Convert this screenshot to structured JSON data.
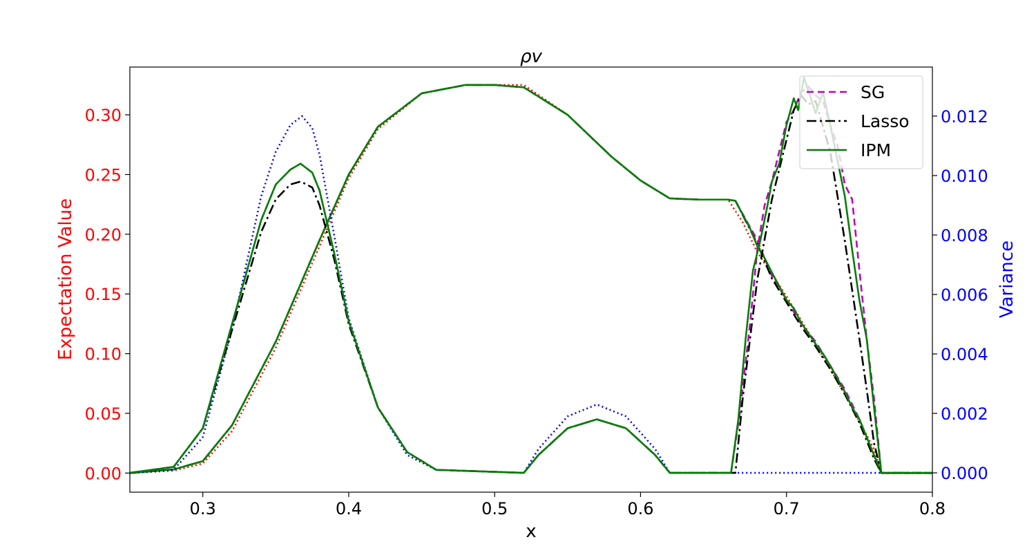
{
  "chart_data": {
    "type": "line",
    "title": "ρv",
    "xlabel": "x",
    "ylabel_left": "Expectation Value",
    "ylabel_right": "Variance",
    "xlim": [
      0.25,
      0.8
    ],
    "ylim_left": [
      -0.016,
      0.34
    ],
    "ylim_right": [
      -0.00065,
      0.01365
    ],
    "x_ticks": [
      "0.3",
      "0.4",
      "0.5",
      "0.6",
      "0.7",
      "0.8"
    ],
    "y_ticks_left": [
      "0.00",
      "0.05",
      "0.10",
      "0.15",
      "0.20",
      "0.25",
      "0.30"
    ],
    "y_ticks_right": [
      "0.000",
      "0.002",
      "0.004",
      "0.006",
      "0.008",
      "0.010",
      "0.012"
    ],
    "grid": false,
    "legend_position": "top-right",
    "colors": {
      "left_axis": "#ff0000",
      "right_axis": "#0000ff",
      "sg": "#bf00bf",
      "lasso": "#000000",
      "ipm": "#007f00",
      "reference_expectation": "#ff0000",
      "reference_variance": "#0000ff"
    },
    "legend": [
      {
        "label": "SG",
        "color": "#bf00bf",
        "dash": "10,6"
      },
      {
        "label": "Lasso",
        "color": "#000000",
        "dash": "14,5,3,5"
      },
      {
        "label": "IPM",
        "color": "#007f00",
        "dash": ""
      }
    ],
    "series": [
      {
        "axis": "left",
        "color": "#ff0000",
        "dash": "2,4",
        "x": [
          0.25,
          0.28,
          0.3,
          0.32,
          0.35,
          0.38,
          0.4,
          0.42,
          0.45,
          0.48,
          0.5,
          0.52,
          0.55,
          0.58,
          0.6,
          0.62,
          0.64,
          0.66,
          0.67,
          0.68,
          0.7,
          0.72,
          0.74,
          0.76,
          0.765,
          0.8
        ],
        "y": [
          0.0,
          0.002,
          0.008,
          0.035,
          0.105,
          0.19,
          0.247,
          0.288,
          0.318,
          0.325,
          0.325,
          0.325,
          0.3,
          0.265,
          0.245,
          0.23,
          0.229,
          0.229,
          0.21,
          0.185,
          0.148,
          0.108,
          0.066,
          0.02,
          0.0,
          0.0
        ]
      },
      {
        "axis": "left",
        "color": "#bf00bf",
        "dash": "10,6",
        "x": [
          0.25,
          0.28,
          0.3,
          0.32,
          0.35,
          0.38,
          0.4,
          0.42,
          0.45,
          0.48,
          0.5,
          0.52,
          0.55,
          0.58,
          0.6,
          0.62,
          0.64,
          0.66,
          0.665,
          0.68,
          0.69,
          0.7,
          0.71,
          0.72,
          0.73,
          0.74,
          0.75,
          0.76,
          0.765,
          0.8
        ],
        "y": [
          0.0,
          0.003,
          0.01,
          0.04,
          0.11,
          0.195,
          0.25,
          0.29,
          0.318,
          0.325,
          0.325,
          0.323,
          0.3,
          0.265,
          0.245,
          0.23,
          0.229,
          0.229,
          0.228,
          0.195,
          0.165,
          0.145,
          0.125,
          0.11,
          0.09,
          0.07,
          0.045,
          0.015,
          0.0,
          0.0
        ]
      },
      {
        "axis": "left",
        "color": "#000000",
        "dash": "14,5,3,5",
        "x": [
          0.25,
          0.28,
          0.3,
          0.32,
          0.35,
          0.38,
          0.4,
          0.42,
          0.45,
          0.48,
          0.5,
          0.52,
          0.55,
          0.58,
          0.6,
          0.62,
          0.64,
          0.66,
          0.665,
          0.68,
          0.69,
          0.7,
          0.71,
          0.72,
          0.73,
          0.74,
          0.75,
          0.76,
          0.765,
          0.8
        ],
        "y": [
          0.0,
          0.003,
          0.01,
          0.04,
          0.11,
          0.195,
          0.25,
          0.29,
          0.318,
          0.325,
          0.325,
          0.323,
          0.3,
          0.265,
          0.245,
          0.23,
          0.229,
          0.229,
          0.228,
          0.192,
          0.163,
          0.143,
          0.123,
          0.106,
          0.087,
          0.066,
          0.042,
          0.012,
          0.0,
          0.0
        ]
      },
      {
        "axis": "left",
        "color": "#007f00",
        "dash": "",
        "x": [
          0.25,
          0.28,
          0.3,
          0.32,
          0.35,
          0.38,
          0.4,
          0.42,
          0.45,
          0.48,
          0.5,
          0.52,
          0.55,
          0.58,
          0.6,
          0.62,
          0.64,
          0.66,
          0.665,
          0.675,
          0.68,
          0.685,
          0.69,
          0.7,
          0.705,
          0.71,
          0.72,
          0.725,
          0.73,
          0.74,
          0.745,
          0.75,
          0.76,
          0.765,
          0.8
        ],
        "y": [
          0.0,
          0.003,
          0.01,
          0.04,
          0.11,
          0.195,
          0.25,
          0.29,
          0.318,
          0.325,
          0.325,
          0.323,
          0.3,
          0.265,
          0.245,
          0.23,
          0.229,
          0.229,
          0.228,
          0.205,
          0.19,
          0.18,
          0.168,
          0.145,
          0.138,
          0.126,
          0.108,
          0.1,
          0.09,
          0.068,
          0.055,
          0.045,
          0.015,
          0.0,
          0.0
        ]
      },
      {
        "axis": "right",
        "color": "#0000ff",
        "dash": "2,4",
        "x": [
          0.25,
          0.28,
          0.3,
          0.32,
          0.34,
          0.35,
          0.36,
          0.368,
          0.375,
          0.38,
          0.39,
          0.4,
          0.42,
          0.44,
          0.46,
          0.52,
          0.53,
          0.55,
          0.57,
          0.59,
          0.61,
          0.62,
          0.8
        ],
        "y": [
          0.0,
          0.0001,
          0.0012,
          0.0048,
          0.0093,
          0.0108,
          0.0117,
          0.012,
          0.0116,
          0.0107,
          0.008,
          0.0052,
          0.0022,
          0.0006,
          0.0001,
          0.0,
          0.0008,
          0.0019,
          0.0023,
          0.0019,
          0.0008,
          0.0,
          0.0
        ]
      },
      {
        "axis": "right",
        "color": "#bf00bf",
        "dash": "10,6",
        "x": [
          0.25,
          0.28,
          0.3,
          0.32,
          0.34,
          0.35,
          0.36,
          0.367,
          0.375,
          0.38,
          0.39,
          0.4,
          0.42,
          0.44,
          0.46,
          0.52,
          0.53,
          0.55,
          0.57,
          0.59,
          0.61,
          0.62,
          0.662,
          0.668,
          0.675,
          0.68,
          0.685,
          0.69,
          0.695,
          0.7,
          0.705,
          0.71,
          0.715,
          0.72,
          0.725,
          0.73,
          0.735,
          0.74,
          0.745,
          0.75,
          0.755,
          0.76,
          0.765,
          0.8
        ],
        "y": [
          0.0,
          0.0002,
          0.0015,
          0.005,
          0.0085,
          0.0097,
          0.0102,
          0.0104,
          0.0101,
          0.0095,
          0.0074,
          0.0051,
          0.0022,
          0.0007,
          0.0001,
          0.0,
          0.0006,
          0.0015,
          0.0018,
          0.0015,
          0.0006,
          0.0,
          0.0,
          0.002,
          0.005,
          0.0075,
          0.009,
          0.0098,
          0.0108,
          0.0118,
          0.0122,
          0.0128,
          0.013,
          0.0127,
          0.0125,
          0.0117,
          0.011,
          0.0097,
          0.0092,
          0.0068,
          0.0045,
          0.0025,
          0.0,
          0.0
        ]
      },
      {
        "axis": "right",
        "color": "#000000",
        "dash": "14,5,3,5",
        "x": [
          0.25,
          0.28,
          0.3,
          0.32,
          0.34,
          0.35,
          0.36,
          0.367,
          0.375,
          0.38,
          0.39,
          0.4,
          0.42,
          0.44,
          0.46,
          0.52,
          0.53,
          0.55,
          0.57,
          0.59,
          0.61,
          0.62,
          0.665,
          0.67,
          0.68,
          0.69,
          0.7,
          0.705,
          0.71,
          0.715,
          0.72,
          0.73,
          0.74,
          0.75,
          0.755,
          0.76,
          0.765,
          0.8
        ],
        "y": [
          0.0,
          0.0002,
          0.0015,
          0.0048,
          0.0081,
          0.0092,
          0.0097,
          0.0098,
          0.0096,
          0.009,
          0.0072,
          0.005,
          0.0022,
          0.0007,
          0.0001,
          0.0,
          0.0006,
          0.0015,
          0.0018,
          0.0015,
          0.0006,
          0.0,
          0.0,
          0.0025,
          0.0065,
          0.0092,
          0.0112,
          0.0122,
          0.0127,
          0.0124,
          0.0125,
          0.0108,
          0.0078,
          0.0045,
          0.0028,
          0.001,
          0.0,
          0.0
        ]
      },
      {
        "axis": "right",
        "color": "#007f00",
        "dash": "",
        "x": [
          0.25,
          0.28,
          0.3,
          0.32,
          0.34,
          0.35,
          0.36,
          0.367,
          0.375,
          0.38,
          0.39,
          0.4,
          0.42,
          0.44,
          0.46,
          0.52,
          0.53,
          0.55,
          0.57,
          0.59,
          0.61,
          0.62,
          0.662,
          0.667,
          0.672,
          0.677,
          0.682,
          0.687,
          0.69,
          0.695,
          0.7,
          0.705,
          0.708,
          0.712,
          0.716,
          0.72,
          0.725,
          0.73,
          0.735,
          0.74,
          0.745,
          0.75,
          0.755,
          0.76,
          0.765,
          0.8
        ],
        "y": [
          0.0,
          0.0002,
          0.0015,
          0.005,
          0.0085,
          0.0097,
          0.0102,
          0.0104,
          0.0101,
          0.0095,
          0.0074,
          0.0051,
          0.0022,
          0.0007,
          0.0001,
          0.0,
          0.0006,
          0.0015,
          0.0018,
          0.0015,
          0.0006,
          0.0,
          0.0,
          0.0018,
          0.0045,
          0.0068,
          0.0078,
          0.009,
          0.0098,
          0.0104,
          0.0117,
          0.0126,
          0.0122,
          0.0133,
          0.0127,
          0.0121,
          0.0128,
          0.0117,
          0.0105,
          0.0093,
          0.0075,
          0.0058,
          0.0045,
          0.0022,
          0.0,
          0.0
        ]
      }
    ]
  }
}
